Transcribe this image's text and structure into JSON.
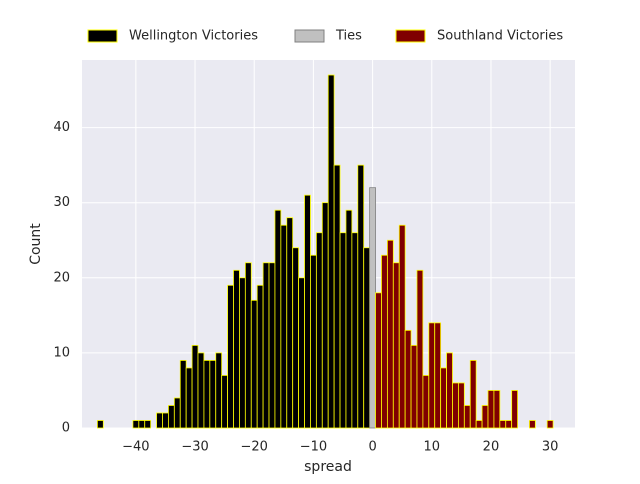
{
  "chart_data": {
    "type": "histogram",
    "x_label": "spread",
    "y_label": "Count",
    "xlim": [
      -49.1,
      34.2
    ],
    "ylim": [
      0,
      49
    ],
    "xticks": [
      {
        "value": -40,
        "label": "−40"
      },
      {
        "value": -30,
        "label": "−30"
      },
      {
        "value": -20,
        "label": "−20"
      },
      {
        "value": -10,
        "label": "−10"
      },
      0,
      10,
      20,
      30
    ],
    "yticks": [
      0,
      10,
      20,
      30,
      40
    ],
    "grid": true,
    "legend": "top",
    "series": [
      {
        "name": "Wellington Victories",
        "color": "#000000",
        "edgecolor": "#ffff00",
        "bins": [
          -46.5,
          -45.5,
          -44.5,
          -43.5,
          -42.5,
          -41.5,
          -40.5,
          -39.5,
          -38.5,
          -37.5,
          -36.5,
          -35.5,
          -34.5,
          -33.5,
          -32.5,
          -31.5,
          -30.5,
          -29.5,
          -28.5,
          -27.5,
          -26.5,
          -25.5,
          -24.5,
          -23.5,
          -22.5,
          -21.5,
          -20.5,
          -19.5,
          -18.5,
          -17.5,
          -16.5,
          -15.5,
          -14.5,
          -13.5,
          -12.5,
          -11.5,
          -10.5,
          -9.5,
          -8.5,
          -7.5,
          -6.5,
          -5.5,
          -4.5,
          -3.5,
          -2.5,
          -1.5,
          -0.5
        ],
        "values": [
          1,
          0,
          0,
          0,
          0,
          0,
          1,
          1,
          1,
          0,
          2,
          2,
          3,
          4,
          9,
          8,
          11,
          10,
          9,
          9,
          10,
          7,
          19,
          21,
          20,
          22,
          17,
          19,
          22,
          22,
          29,
          27,
          28,
          24,
          20,
          31,
          23,
          26,
          30,
          47,
          35,
          26,
          29,
          26,
          35,
          24
        ]
      },
      {
        "name": "Ties",
        "color": "#c0c0c0",
        "edgecolor": "#808080",
        "bins": [
          -0.5,
          0.5
        ],
        "values": [
          32
        ]
      },
      {
        "name": "Southland Victories",
        "color": "#800000",
        "edgecolor": "#ffff00",
        "bins": [
          0.5,
          1.5,
          2.5,
          3.5,
          4.5,
          5.5,
          6.5,
          7.5,
          8.5,
          9.5,
          10.5,
          11.5,
          12.5,
          13.5,
          14.5,
          15.5,
          16.5,
          17.5,
          18.5,
          19.5,
          20.5,
          21.5,
          22.5,
          23.5,
          24.5,
          25.5,
          26.5,
          27.5,
          28.5,
          29.5,
          30.5
        ],
        "values": [
          18,
          23,
          25,
          22,
          27,
          13,
          11,
          21,
          7,
          14,
          14,
          8,
          10,
          6,
          6,
          3,
          9,
          1,
          3,
          5,
          5,
          1,
          1,
          5,
          0,
          0,
          1,
          0,
          0,
          1
        ]
      }
    ]
  }
}
